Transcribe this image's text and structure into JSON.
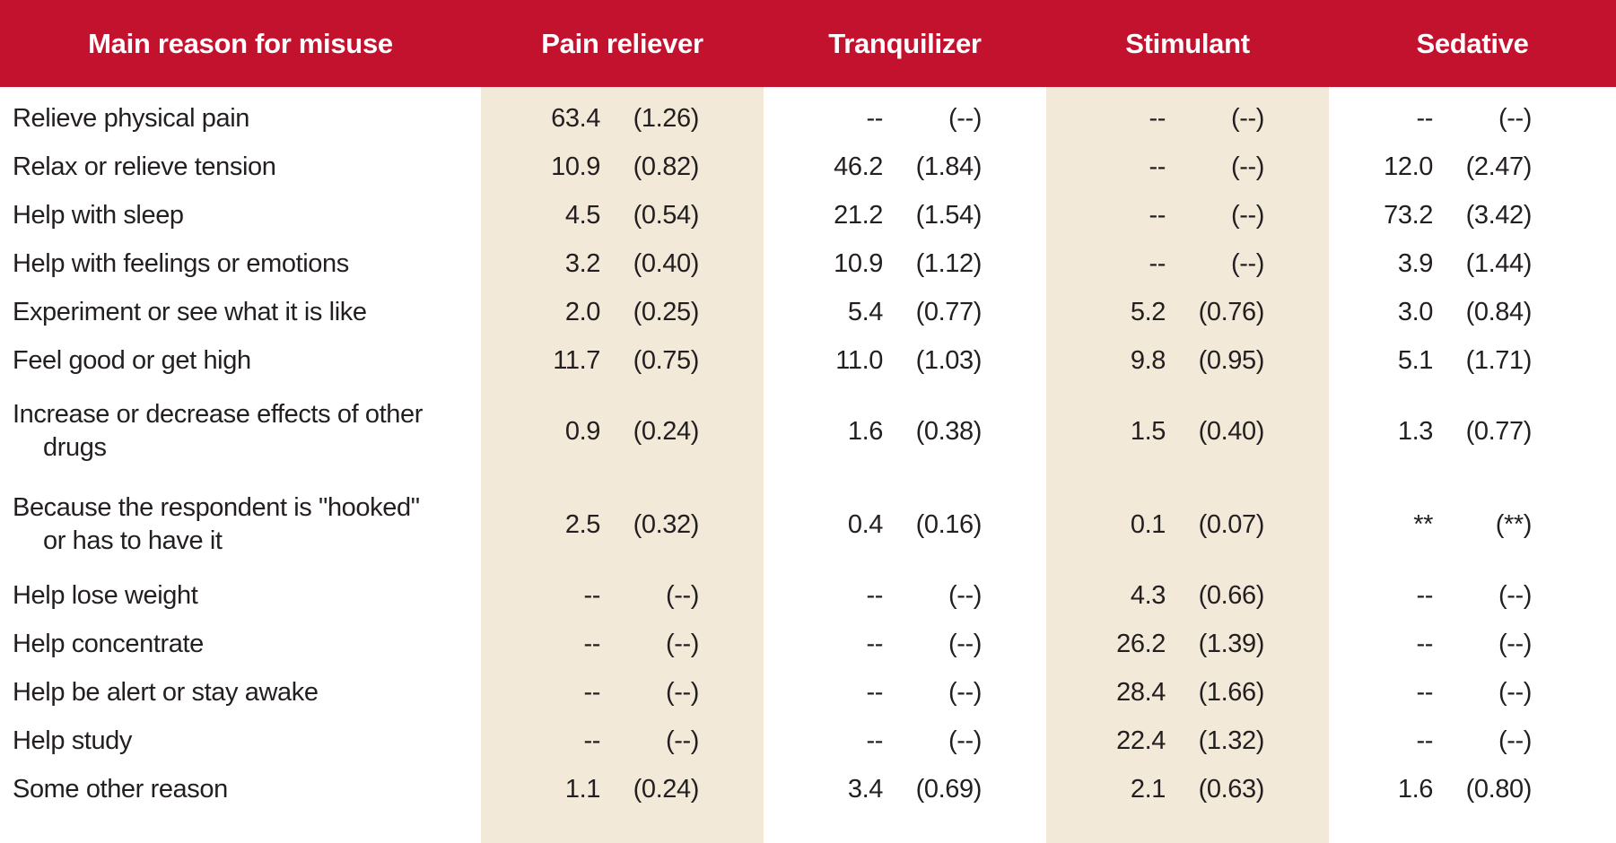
{
  "table": {
    "columns": [
      {
        "key": "main-reason",
        "label": "Main reason for misuse"
      },
      {
        "key": "pain-reliever",
        "label": "Pain reliever",
        "shaded": true
      },
      {
        "key": "tranquilizer",
        "label": "Tranquilizer",
        "shaded": false
      },
      {
        "key": "stimulant",
        "label": "Stimulant",
        "shaded": true
      },
      {
        "key": "sedative",
        "label": "Sedative",
        "shaded": false
      }
    ],
    "missing_marker": "--",
    "missing_se_marker": "(--)",
    "suppressed_marker": "**",
    "suppressed_se_marker": "(**)",
    "rows": [
      {
        "label_lines": [
          "Relieve physical pain"
        ],
        "cells": [
          {
            "v": "63.4",
            "se": "(1.26)"
          },
          {
            "v": "--",
            "se": "(--)"
          },
          {
            "v": "--",
            "se": "(--)"
          },
          {
            "v": "--",
            "se": "(--)"
          }
        ]
      },
      {
        "label_lines": [
          "Relax or relieve tension"
        ],
        "cells": [
          {
            "v": "10.9",
            "se": "(0.82)"
          },
          {
            "v": "46.2",
            "se": "(1.84)"
          },
          {
            "v": "--",
            "se": "(--)"
          },
          {
            "v": "12.0",
            "se": "(2.47)"
          }
        ]
      },
      {
        "label_lines": [
          "Help with sleep"
        ],
        "cells": [
          {
            "v": "4.5",
            "se": "(0.54)"
          },
          {
            "v": "21.2",
            "se": "(1.54)"
          },
          {
            "v": "--",
            "se": "(--)"
          },
          {
            "v": "73.2",
            "se": "(3.42)"
          }
        ]
      },
      {
        "label_lines": [
          "Help with feelings or emotions"
        ],
        "cells": [
          {
            "v": "3.2",
            "se": "(0.40)"
          },
          {
            "v": "10.9",
            "se": "(1.12)"
          },
          {
            "v": "--",
            "se": "(--)"
          },
          {
            "v": "3.9",
            "se": "(1.44)"
          }
        ]
      },
      {
        "label_lines": [
          "Experiment or see what it is like"
        ],
        "cells": [
          {
            "v": "2.0",
            "se": "(0.25)"
          },
          {
            "v": "5.4",
            "se": "(0.77)"
          },
          {
            "v": "5.2",
            "se": "(0.76)"
          },
          {
            "v": "3.0",
            "se": "(0.84)"
          }
        ]
      },
      {
        "label_lines": [
          "Feel good or get high"
        ],
        "cells": [
          {
            "v": "11.7",
            "se": "(0.75)"
          },
          {
            "v": "11.0",
            "se": "(1.03)"
          },
          {
            "v": "9.8",
            "se": "(0.95)"
          },
          {
            "v": "5.1",
            "se": "(1.71)"
          }
        ]
      },
      {
        "label_lines": [
          "Increase or decrease effects of other",
          "drugs"
        ],
        "cells": [
          {
            "v": "0.9",
            "se": "(0.24)"
          },
          {
            "v": "1.6",
            "se": "(0.38)"
          },
          {
            "v": "1.5",
            "se": "(0.40)"
          },
          {
            "v": "1.3",
            "se": "(0.77)"
          }
        ]
      },
      {
        "label_lines": [
          "Because the respondent is \"hooked\"",
          "or has to have it"
        ],
        "cells": [
          {
            "v": "2.5",
            "se": "(0.32)"
          },
          {
            "v": "0.4",
            "se": "(0.16)"
          },
          {
            "v": "0.1",
            "se": "(0.07)"
          },
          {
            "v": "**",
            "se": "(**)"
          }
        ]
      },
      {
        "label_lines": [
          "Help lose weight"
        ],
        "cells": [
          {
            "v": "--",
            "se": "(--)"
          },
          {
            "v": "--",
            "se": "(--)"
          },
          {
            "v": "4.3",
            "se": "(0.66)"
          },
          {
            "v": "--",
            "se": "(--)"
          }
        ]
      },
      {
        "label_lines": [
          "Help concentrate"
        ],
        "cells": [
          {
            "v": "--",
            "se": "(--)"
          },
          {
            "v": "--",
            "se": "(--)"
          },
          {
            "v": "26.2",
            "se": "(1.39)"
          },
          {
            "v": "--",
            "se": "(--)"
          }
        ]
      },
      {
        "label_lines": [
          "Help be alert or stay awake"
        ],
        "cells": [
          {
            "v": "--",
            "se": "(--)"
          },
          {
            "v": "--",
            "se": "(--)"
          },
          {
            "v": "28.4",
            "se": "(1.66)"
          },
          {
            "v": "--",
            "se": "(--)"
          }
        ]
      },
      {
        "label_lines": [
          "Help study"
        ],
        "cells": [
          {
            "v": "--",
            "se": "(--)"
          },
          {
            "v": "--",
            "se": "(--)"
          },
          {
            "v": "22.4",
            "se": "(1.32)"
          },
          {
            "v": "--",
            "se": "(--)"
          }
        ]
      },
      {
        "label_lines": [
          "Some other reason"
        ],
        "cells": [
          {
            "v": "1.1",
            "se": "(0.24)"
          },
          {
            "v": "3.4",
            "se": "(0.69)"
          },
          {
            "v": "2.1",
            "se": "(0.63)"
          },
          {
            "v": "1.6",
            "se": "(0.80)"
          }
        ]
      }
    ]
  },
  "colors": {
    "header_bg": "#C3122E",
    "header_text": "#FFFFFF",
    "shaded_column_bg": "#F2E9D8",
    "body_text": "#231F20",
    "body_bg": "#FFFFFF"
  }
}
